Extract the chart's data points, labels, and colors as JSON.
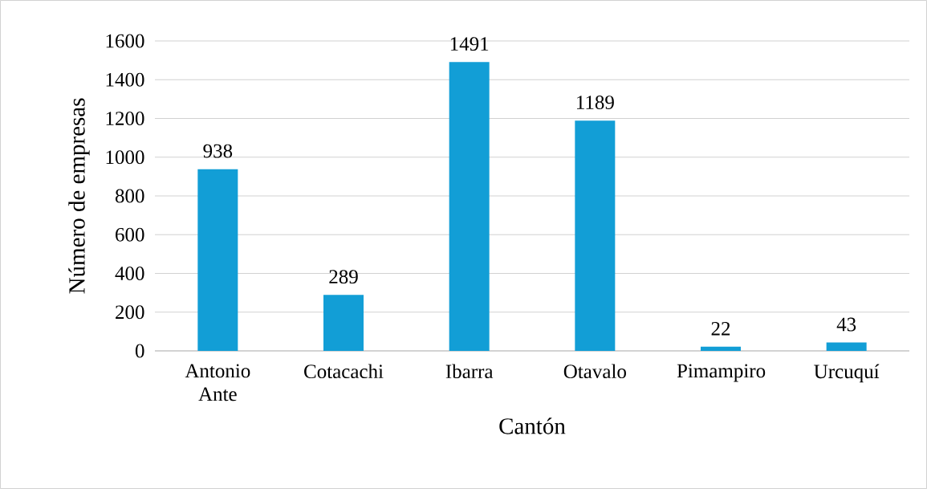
{
  "chart_data": {
    "type": "bar",
    "xlabel": "Cantón",
    "ylabel": "Número de empresas",
    "categories": [
      "Antonio Ante",
      "Cotacachi",
      "Ibarra",
      "Otavalo",
      "Pimampiro",
      "Urcuquí"
    ],
    "values": [
      938,
      289,
      1491,
      1189,
      22,
      43
    ],
    "color": "#129ed6",
    "ylim": [
      0,
      1600
    ],
    "yticks": [
      0,
      200,
      400,
      600,
      800,
      1000,
      1200,
      1400,
      1600
    ],
    "grid": "y",
    "data_labels": true
  }
}
